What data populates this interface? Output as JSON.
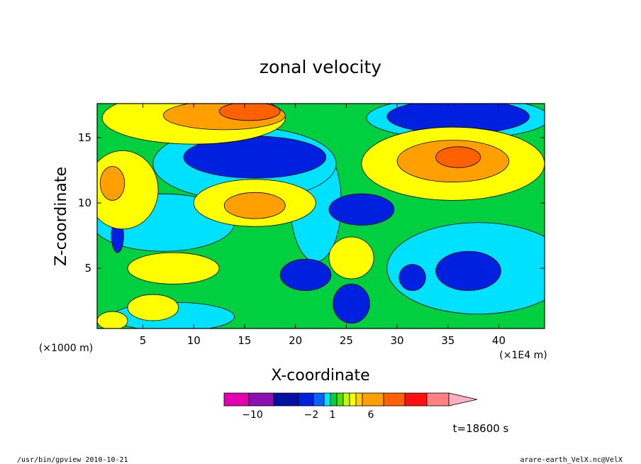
{
  "chart_data": {
    "type": "heatmap",
    "title": "zonal velocity",
    "xlabel": "X-coordinate",
    "ylabel": "Z-coordinate",
    "x_unit": "(×1E4 m)",
    "y_unit": "(×1000 m)",
    "xlim": [
      0.5,
      44.5
    ],
    "ylim": [
      0.4,
      17.6
    ],
    "x_ticks": [
      5,
      10,
      15,
      20,
      25,
      30,
      35,
      40
    ],
    "y_ticks": [
      5,
      10,
      15
    ],
    "time_label": "t=18600 s",
    "colorbar": {
      "tick_labels": [
        {
          "value": -10,
          "label": "−10"
        },
        {
          "value": -2,
          "label": "−2"
        },
        {
          "value": 1,
          "label": "1"
        },
        {
          "value": 6,
          "label": "6"
        }
      ],
      "colors": [
        "#e000b0",
        "#8a10b0",
        "#0010a0",
        "#0020e0",
        "#0a60ff",
        "#00e0ff",
        "#00d040",
        "#50e000",
        "#c0ff00",
        "#ffff00",
        "#ffd000",
        "#ffa000",
        "#ff6000",
        "#ff1010",
        "#ff8080",
        "#ffb0c0"
      ]
    },
    "fields": {
      "background": "#00d040",
      "regions": [
        {
          "kind": "rect",
          "x": [
            0.5,
            44.5
          ],
          "z": [
            0.4,
            17.6
          ],
          "value": 0
        },
        {
          "kind": "blob",
          "cx": 7,
          "cz": 8.5,
          "rx": 7,
          "rz": 2.2,
          "value": -1
        },
        {
          "kind": "blob",
          "cx": 38,
          "cz": 5,
          "rx": 9,
          "rz": 3.5,
          "value": -1
        },
        {
          "kind": "blob",
          "cx": 22,
          "cz": 10,
          "rx": 2.5,
          "rz": 4.5,
          "value": -1
        },
        {
          "kind": "blob",
          "cx": 15,
          "cz": 13,
          "rx": 9,
          "rz": 2.8,
          "value": -1
        },
        {
          "kind": "blob",
          "cx": 36,
          "cz": 16.5,
          "rx": 9,
          "rz": 1.6,
          "value": -1
        },
        {
          "kind": "blob",
          "cx": 8,
          "cz": 1.3,
          "rx": 6,
          "rz": 1.1,
          "value": -1
        },
        {
          "kind": "blob",
          "cx": 16,
          "cz": 13.5,
          "rx": 7,
          "rz": 1.6,
          "value": -3
        },
        {
          "kind": "blob",
          "cx": 36,
          "cz": 16.6,
          "rx": 7,
          "rz": 1.3,
          "value": -3
        },
        {
          "kind": "blob",
          "cx": 26.5,
          "cz": 9.5,
          "rx": 3.2,
          "rz": 1.2,
          "value": -3
        },
        {
          "kind": "blob",
          "cx": 37,
          "cz": 4.8,
          "rx": 3.2,
          "rz": 1.5,
          "value": -3
        },
        {
          "kind": "blob",
          "cx": 31.5,
          "cz": 4.3,
          "rx": 1.3,
          "rz": 1,
          "value": -3
        },
        {
          "kind": "blob",
          "cx": 25.5,
          "cz": 2.3,
          "rx": 1.8,
          "rz": 1.5,
          "value": -3
        },
        {
          "kind": "blob",
          "cx": 21,
          "cz": 4.5,
          "rx": 2.5,
          "rz": 1.2,
          "value": -3
        },
        {
          "kind": "blob",
          "cx": 2.5,
          "cz": 7.5,
          "rx": 0.6,
          "rz": 1.3,
          "value": -3
        },
        {
          "kind": "blob",
          "cx": 6,
          "cz": 2,
          "rx": 2.5,
          "rz": 1,
          "value": 2
        },
        {
          "kind": "blob",
          "cx": 8,
          "cz": 5,
          "rx": 4.5,
          "rz": 1.2,
          "value": 2
        },
        {
          "kind": "blob",
          "cx": 3,
          "cz": 11,
          "rx": 3.5,
          "rz": 3,
          "value": 2
        },
        {
          "kind": "blob",
          "cx": 10,
          "cz": 16.5,
          "rx": 9,
          "rz": 2,
          "value": 2
        },
        {
          "kind": "blob",
          "cx": 35.5,
          "cz": 13,
          "rx": 9,
          "rz": 2.8,
          "value": 2
        },
        {
          "kind": "blob",
          "cx": 16,
          "cz": 10,
          "rx": 6,
          "rz": 1.8,
          "value": 2
        },
        {
          "kind": "blob",
          "cx": 25.5,
          "cz": 5.8,
          "rx": 2.2,
          "rz": 1.6,
          "value": 2
        },
        {
          "kind": "blob",
          "cx": 2,
          "cz": 1,
          "rx": 1.5,
          "rz": 0.7,
          "value": 2
        },
        {
          "kind": "blob",
          "cx": 13,
          "cz": 16.7,
          "rx": 6,
          "rz": 1.1,
          "value": 4
        },
        {
          "kind": "blob",
          "cx": 35.5,
          "cz": 13.2,
          "rx": 5.5,
          "rz": 1.6,
          "value": 4
        },
        {
          "kind": "blob",
          "cx": 16,
          "cz": 9.8,
          "rx": 3,
          "rz": 1,
          "value": 4
        },
        {
          "kind": "blob",
          "cx": 2,
          "cz": 11.5,
          "rx": 1.2,
          "rz": 1.3,
          "value": 4
        },
        {
          "kind": "blob",
          "cx": 15.5,
          "cz": 17,
          "rx": 3,
          "rz": 0.7,
          "value": 6
        },
        {
          "kind": "blob",
          "cx": 36,
          "cz": 13.5,
          "rx": 2.2,
          "rz": 0.8,
          "value": 6
        }
      ]
    }
  },
  "footer": {
    "left": "/usr/bin/gpview   2010-10-21",
    "right": "arare-earth_VelX.nc@VelX"
  }
}
